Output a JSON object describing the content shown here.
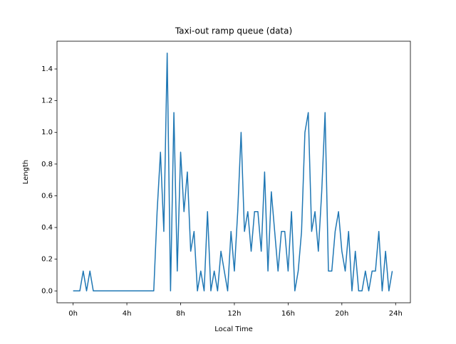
{
  "chart_data": {
    "type": "line",
    "title": "Taxi-out ramp queue (data)",
    "x_label": "Local Time",
    "y_label": "Length",
    "x": [
      0,
      0.25,
      0.5,
      0.75,
      1,
      1.25,
      1.5,
      1.75,
      2,
      2.25,
      2.5,
      2.75,
      3,
      3.25,
      3.5,
      3.75,
      4,
      4.25,
      4.5,
      4.75,
      5,
      5.25,
      5.5,
      5.75,
      6,
      6.25,
      6.5,
      6.75,
      7,
      7.25,
      7.5,
      7.75,
      8,
      8.25,
      8.5,
      8.75,
      9,
      9.25,
      9.5,
      9.75,
      10,
      10.25,
      10.5,
      10.75,
      11,
      11.25,
      11.5,
      11.75,
      12,
      12.25,
      12.5,
      12.75,
      13,
      13.25,
      13.5,
      13.75,
      14,
      14.25,
      14.5,
      14.75,
      15,
      15.25,
      15.5,
      15.75,
      16,
      16.25,
      16.5,
      16.75,
      17,
      17.25,
      17.5,
      17.75,
      18,
      18.25,
      18.5,
      18.75,
      19,
      19.25,
      19.5,
      19.75,
      20,
      20.25,
      20.5,
      20.75,
      21,
      21.25,
      21.5,
      21.75,
      22,
      22.25,
      22.5,
      22.75,
      23,
      23.25,
      23.5,
      23.75
    ],
    "series": [
      {
        "name": "queue",
        "color": "#1f77b4",
        "values": [
          0,
          0,
          0,
          0.125,
          0,
          0.125,
          0,
          0,
          0,
          0,
          0,
          0,
          0,
          0,
          0,
          0,
          0,
          0,
          0,
          0,
          0,
          0,
          0,
          0,
          0,
          0.5,
          0.875,
          0.375,
          1.5,
          0,
          1.125,
          0.125,
          0.875,
          0.5,
          0.75,
          0.25,
          0.375,
          0,
          0.125,
          0,
          0.5,
          0,
          0.125,
          0,
          0.25,
          0.125,
          0,
          0.375,
          0.125,
          0.5,
          1.0,
          0.375,
          0.5,
          0.25,
          0.5,
          0.5,
          0.25,
          0.75,
          0.125,
          0.625,
          0.375,
          0.125,
          0.375,
          0.375,
          0.125,
          0.5,
          0,
          0.125,
          0.375,
          1.0,
          1.125,
          0.375,
          0.5,
          0.25,
          0.625,
          1.125,
          0.125,
          0.125,
          0.375,
          0.5,
          0.25,
          0.125,
          0.375,
          0,
          0.25,
          0,
          0,
          0.125,
          0,
          0.125,
          0.125,
          0.375,
          0,
          0.25,
          0,
          0.125
        ]
      }
    ],
    "xlim": [
      -1.2,
      25.1
    ],
    "ylim": [
      -0.075,
      1.575
    ],
    "xticks": [
      {
        "value": 0,
        "label": "0h"
      },
      {
        "value": 4,
        "label": "4h"
      },
      {
        "value": 8,
        "label": "8h"
      },
      {
        "value": 12,
        "label": "12h"
      },
      {
        "value": 16,
        "label": "16h"
      },
      {
        "value": 20,
        "label": "20h"
      },
      {
        "value": 24,
        "label": "24h"
      }
    ],
    "yticks": [
      {
        "value": 0,
        "label": "0.0"
      },
      0.2,
      0.4,
      0.6,
      0.8,
      {
        "value": 1,
        "label": "1.0"
      },
      1.2,
      1.4
    ]
  }
}
